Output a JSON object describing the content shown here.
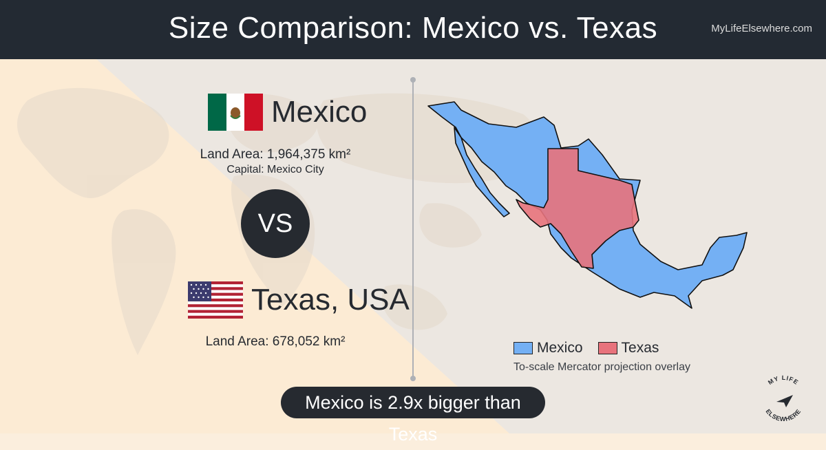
{
  "header": {
    "title": "Size Comparison: Mexico vs. Texas",
    "site": "MyLifeElsewhere.com"
  },
  "country_a": {
    "name": "Mexico",
    "land_area": "Land Area: 1,964,375 km²",
    "capital": "Capital: Mexico City",
    "flag_icon": "mexico-flag-icon"
  },
  "vs_label": "VS",
  "country_b": {
    "name": "Texas, USA",
    "land_area": "Land Area: 678,052 km²",
    "flag_icon": "usa-flag-icon"
  },
  "legend": {
    "items": [
      {
        "label": "Mexico",
        "color": "#74b0f4"
      },
      {
        "label": "Texas",
        "color": "#e8737c"
      }
    ],
    "note": "To-scale Mercator projection overlay"
  },
  "summary": "Mexico is 2.9x bigger than Texas",
  "logo": {
    "text": "MY LIFE ELSEWHERE",
    "icon": "paper-plane-icon"
  },
  "colors": {
    "header_bg": "#232a33",
    "page_bg": "#fbeedd",
    "dark": "#262a30",
    "mexico": "#74b0f4",
    "texas": "#e8737c"
  }
}
